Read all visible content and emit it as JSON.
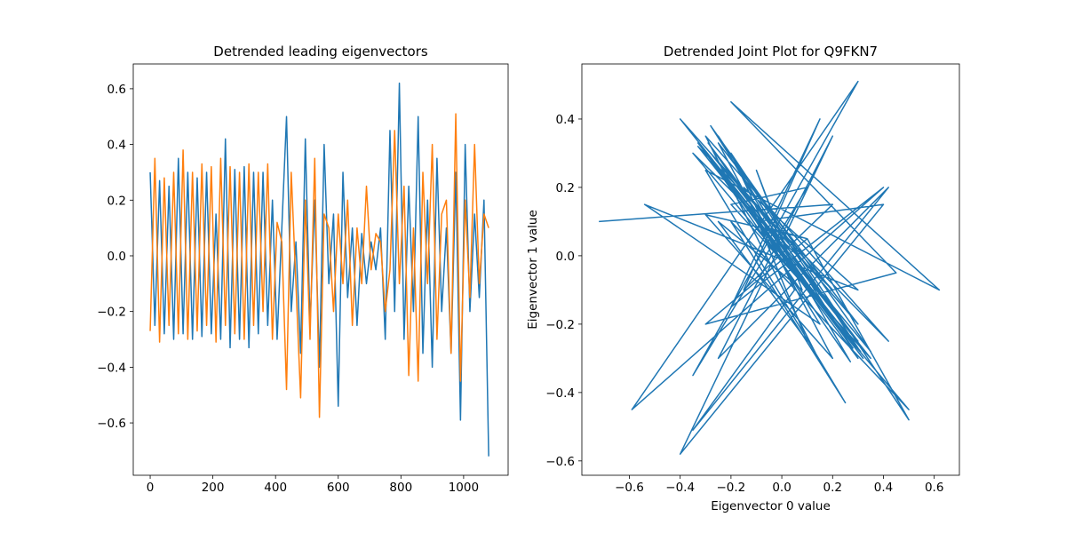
{
  "chart_data": [
    {
      "type": "line",
      "title": "Detrended leading eigenvectors",
      "x": [
        0,
        15,
        30,
        45,
        60,
        75,
        90,
        105,
        120,
        135,
        150,
        165,
        180,
        195,
        210,
        225,
        240,
        255,
        270,
        285,
        300,
        315,
        330,
        345,
        360,
        375,
        390,
        405,
        420,
        435,
        450,
        465,
        480,
        495,
        510,
        525,
        540,
        555,
        570,
        585,
        600,
        615,
        630,
        645,
        660,
        675,
        690,
        705,
        720,
        735,
        750,
        765,
        780,
        795,
        810,
        825,
        840,
        855,
        870,
        885,
        900,
        915,
        930,
        945,
        960,
        975,
        990,
        1005,
        1020,
        1035,
        1050,
        1065,
        1080
      ],
      "series": [
        {
          "color": "#1f77b4",
          "values": [
            0.3,
            -0.25,
            0.27,
            -0.28,
            0.25,
            -0.3,
            0.35,
            -0.28,
            0.3,
            -0.3,
            0.28,
            -0.29,
            0.3,
            -0.28,
            0.15,
            -0.3,
            0.42,
            -0.33,
            0.31,
            -0.3,
            0.32,
            -0.33,
            0.3,
            -0.28,
            0.3,
            -0.25,
            0.2,
            -0.3,
            0.1,
            0.5,
            -0.2,
            0.05,
            -0.35,
            0.42,
            -0.25,
            0.2,
            -0.4,
            0.4,
            -0.1,
            0.15,
            -0.54,
            0.3,
            -0.15,
            0.1,
            -0.25,
            0.08,
            -0.1,
            0.05,
            -0.05,
            0.1,
            -0.3,
            0.45,
            -0.2,
            0.62,
            -0.3,
            0.25,
            -0.2,
            0.5,
            -0.35,
            0.2,
            -0.4,
            0.35,
            -0.2,
            0.1,
            -0.35,
            0.3,
            -0.59,
            0.4,
            -0.2,
            0.15,
            -0.15,
            0.2,
            -0.72
          ]
        },
        {
          "color": "#ff7f0e",
          "values": [
            -0.27,
            0.35,
            -0.31,
            0.28,
            -0.25,
            0.3,
            -0.28,
            0.38,
            -0.3,
            0.3,
            -0.27,
            0.33,
            -0.25,
            0.32,
            -0.31,
            0.35,
            -0.25,
            0.32,
            -0.28,
            0.3,
            -0.3,
            0.33,
            -0.25,
            0.3,
            -0.2,
            0.33,
            -0.3,
            0.12,
            0.05,
            -0.48,
            0.3,
            -0.1,
            -0.51,
            0.2,
            -0.3,
            0.35,
            -0.58,
            0.15,
            0.1,
            -0.2,
            0.15,
            -0.1,
            0.2,
            -0.25,
            0.1,
            -0.1,
            0.25,
            -0.05,
            0.08,
            0.05,
            -0.2,
            -0.05,
            0.45,
            -0.1,
            0.25,
            -0.43,
            0.1,
            -0.45,
            0.3,
            -0.1,
            0.4,
            -0.3,
            0.15,
            0.2,
            -0.35,
            0.51,
            -0.45,
            0.2,
            -0.15,
            0.4,
            -0.1,
            0.15,
            0.1
          ]
        }
      ],
      "xlim": [
        -54,
        1142
      ],
      "xticks": [
        0,
        200,
        400,
        600,
        800,
        1000
      ],
      "ylim": [
        -0.788,
        0.689
      ],
      "yticks": [
        {
          "value": -0.6,
          "label": "−0.6"
        },
        {
          "value": -0.4,
          "label": "−0.4"
        },
        {
          "value": -0.2,
          "label": "−0.2"
        },
        {
          "value": 0,
          "label": "0.0"
        },
        {
          "value": 0.2,
          "label": "0.2"
        },
        {
          "value": 0.4,
          "label": "0.4"
        },
        {
          "value": 0.6,
          "label": "0.6"
        }
      ]
    },
    {
      "type": "line",
      "title": "Detrended Joint Plot for Q9FKN7",
      "xlabel": "Eigenvector 0 value",
      "ylabel": "Eigenvector 1 value",
      "x": [
        0.3,
        -0.25,
        0.27,
        -0.28,
        0.25,
        -0.3,
        0.35,
        -0.28,
        0.3,
        -0.3,
        0.28,
        -0.29,
        0.3,
        -0.28,
        0.15,
        -0.3,
        0.42,
        -0.33,
        0.31,
        -0.3,
        0.32,
        -0.33,
        0.3,
        -0.28,
        0.3,
        -0.25,
        0.2,
        -0.3,
        0.1,
        0.5,
        -0.2,
        0.05,
        -0.35,
        0.42,
        -0.25,
        0.2,
        -0.4,
        0.4,
        -0.1,
        0.15,
        -0.54,
        0.3,
        -0.15,
        0.1,
        -0.25,
        0.08,
        -0.1,
        0.05,
        -0.05,
        0.1,
        -0.3,
        0.45,
        -0.2,
        0.62,
        -0.3,
        0.25,
        -0.2,
        0.5,
        -0.35,
        0.2,
        -0.4,
        0.35,
        -0.2,
        0.1,
        -0.35,
        0.3,
        -0.59,
        0.4,
        -0.2,
        0.15,
        -0.15,
        0.2,
        -0.72
      ],
      "values": [
        -0.27,
        0.35,
        -0.31,
        0.28,
        -0.25,
        0.3,
        -0.28,
        0.38,
        -0.3,
        0.3,
        -0.27,
        0.33,
        -0.25,
        0.32,
        -0.31,
        0.35,
        -0.25,
        0.32,
        -0.28,
        0.3,
        -0.3,
        0.33,
        -0.25,
        0.3,
        -0.2,
        0.33,
        -0.3,
        0.12,
        0.05,
        -0.48,
        0.3,
        -0.1,
        -0.51,
        0.2,
        -0.3,
        0.35,
        -0.58,
        0.15,
        0.1,
        -0.2,
        0.15,
        -0.1,
        0.2,
        -0.25,
        0.1,
        -0.1,
        0.25,
        -0.05,
        0.08,
        0.05,
        -0.2,
        -0.05,
        0.45,
        -0.1,
        0.25,
        -0.43,
        0.1,
        -0.45,
        0.3,
        -0.1,
        0.4,
        -0.3,
        0.15,
        0.2,
        -0.35,
        0.51,
        -0.45,
        0.2,
        -0.15,
        0.4,
        -0.1,
        0.15,
        0.1
      ],
      "color": "#1f77b4",
      "xlim": [
        -0.787,
        0.699
      ],
      "xticks": [
        {
          "value": -0.6,
          "label": "−0.6"
        },
        {
          "value": -0.4,
          "label": "−0.4"
        },
        {
          "value": -0.2,
          "label": "−0.2"
        },
        {
          "value": 0,
          "label": "0.0"
        },
        {
          "value": 0.2,
          "label": "0.2"
        },
        {
          "value": 0.4,
          "label": "0.4"
        },
        {
          "value": 0.6,
          "label": "0.6"
        }
      ],
      "ylim": [
        -0.642,
        0.561
      ],
      "yticks": [
        {
          "value": -0.6,
          "label": "−0.6"
        },
        {
          "value": -0.4,
          "label": "−0.4"
        },
        {
          "value": -0.2,
          "label": "−0.2"
        },
        {
          "value": 0,
          "label": "0.0"
        },
        {
          "value": 0.2,
          "label": "0.2"
        },
        {
          "value": 0.4,
          "label": "0.4"
        }
      ]
    }
  ]
}
